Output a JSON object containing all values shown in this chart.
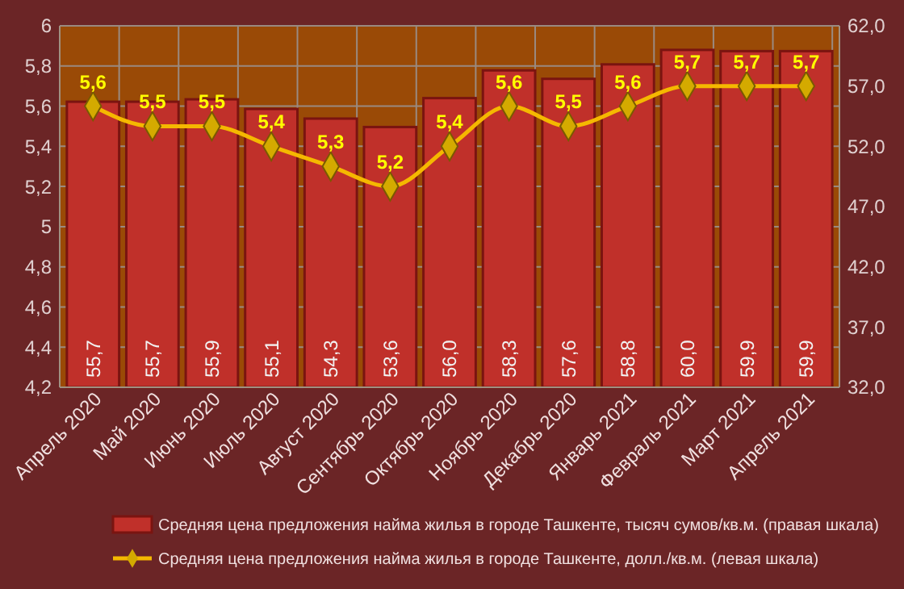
{
  "chart_data": {
    "type": "bar",
    "categories": [
      "Апрель 2020",
      "Май 2020",
      "Июнь 2020",
      "Июль 2020",
      "Август 2020",
      "Сентябрь 2020",
      "Октябрь 2020",
      "Ноябрь 2020",
      "Декабрь 2020",
      "Январь 2021",
      "Февраль 2021",
      "Март 2021",
      "Апрель 2021"
    ],
    "series": [
      {
        "name": "Средняя цена предложения найма жилья в городе Ташкенте, тысяч сумов/кв.м. (правая шкала)",
        "axis": "y2",
        "color": "#c0302a",
        "values": [
          55.7,
          55.7,
          55.9,
          55.1,
          54.3,
          53.6,
          56.0,
          58.3,
          57.6,
          58.8,
          60.0,
          59.9,
          59.9
        ],
        "value_labels": [
          "55,7",
          "55,7",
          "55,9",
          "55,1",
          "54,3",
          "53,6",
          "56,0",
          "58,3",
          "57,6",
          "58,8",
          "60,0",
          "59,9",
          "59,9"
        ]
      },
      {
        "name": "Средняя цена предложения найма жилья в городе Ташкенте, долл./кв.м. (левая шкала)",
        "type": "line",
        "axis": "y",
        "color": "#f5b800",
        "marker": "diamond",
        "values": [
          5.6,
          5.5,
          5.5,
          5.4,
          5.3,
          5.2,
          5.4,
          5.6,
          5.5,
          5.6,
          5.7,
          5.7,
          5.7
        ],
        "value_labels": [
          "5,6",
          "5,5",
          "5,5",
          "5,4",
          "5,3",
          "5,2",
          "5,4",
          "5,6",
          "5,5",
          "5,6",
          "5,7",
          "5,7",
          "5,7"
        ]
      }
    ],
    "ylim": [
      4.2,
      6
    ],
    "yticks": [
      {
        "value": 4.2,
        "label": "4,2"
      },
      {
        "value": 4.4,
        "label": "4,4"
      },
      {
        "value": 4.6,
        "label": "4,6"
      },
      {
        "value": 4.8,
        "label": "4,8"
      },
      5,
      {
        "value": 5.2,
        "label": "5,2"
      },
      {
        "value": 5.4,
        "label": "5,4"
      },
      {
        "value": 5.6,
        "label": "5,6"
      },
      {
        "value": 5.8,
        "label": "5,8"
      },
      6
    ],
    "y2lim": [
      32,
      62
    ],
    "y2ticks": [
      {
        "value": 32,
        "label": "32,0"
      },
      {
        "value": 37,
        "label": "37,0"
      },
      {
        "value": 42,
        "label": "42,0"
      },
      {
        "value": 47,
        "label": "47,0"
      },
      {
        "value": 52,
        "label": "52,0"
      },
      {
        "value": 57,
        "label": "57,0"
      },
      {
        "value": 62,
        "label": "62,0"
      }
    ],
    "grid": true,
    "legend": "bottom"
  }
}
